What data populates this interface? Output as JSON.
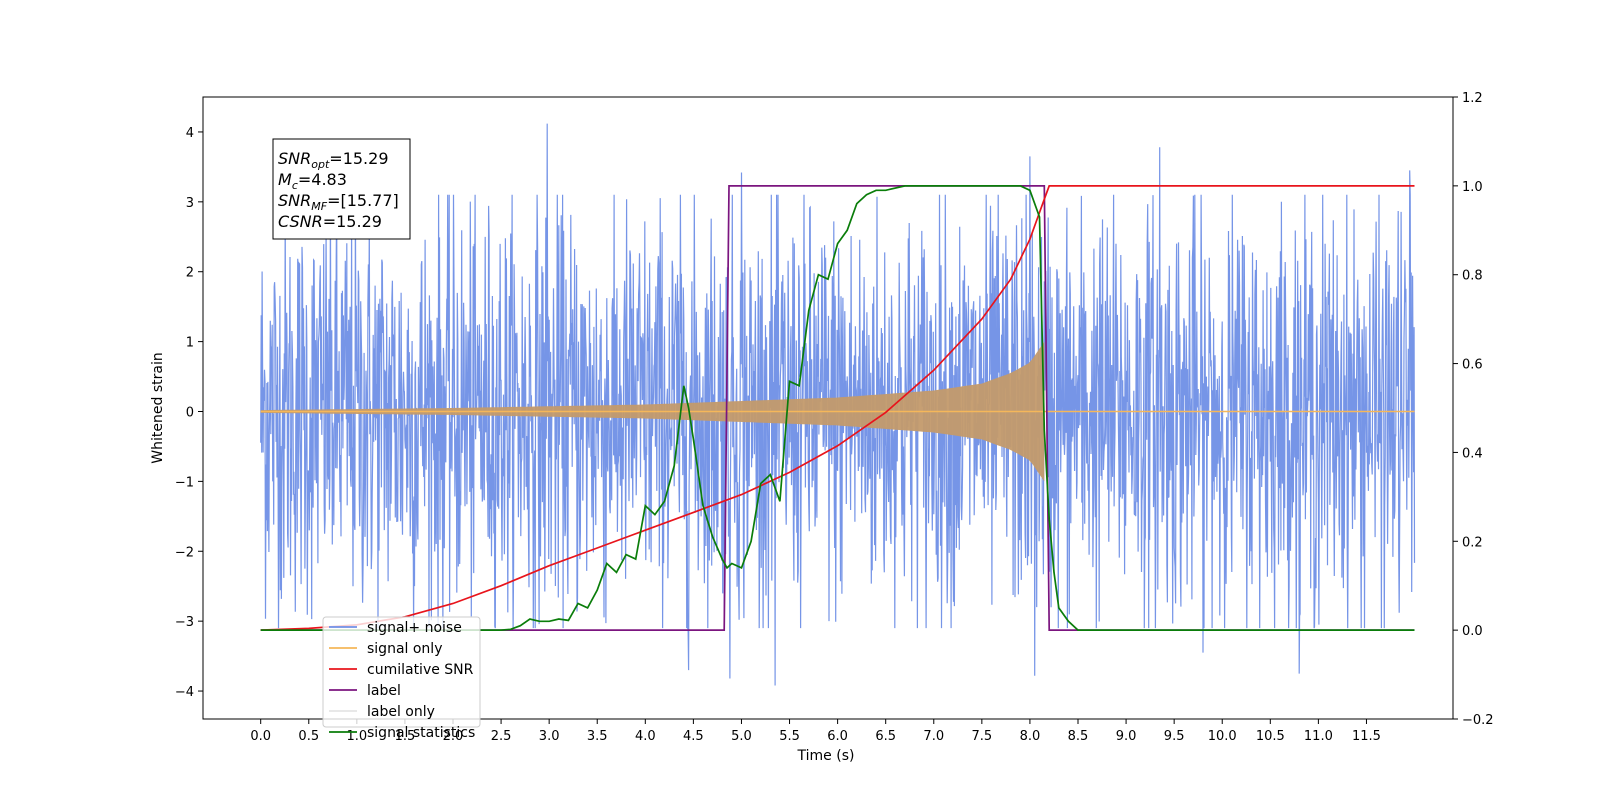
{
  "chart_data": {
    "type": "line",
    "xlabel": "Time (s)",
    "ylabel": "Whitened strain",
    "xlim": [
      -0.6,
      12.4
    ],
    "ylim": [
      -4.4,
      4.5
    ],
    "y2lim": [
      -0.2,
      1.2
    ],
    "x_ticks": [
      "0.0",
      "0.5",
      "1.0",
      "1.5",
      "2.0",
      "2.5",
      "3.0",
      "3.5",
      "4.0",
      "4.5",
      "5.0",
      "5.5",
      "6.0",
      "6.5",
      "7.0",
      "7.5",
      "8.0",
      "8.5",
      "9.0",
      "9.5",
      "10.0",
      "10.5",
      "11.0",
      "11.5"
    ],
    "y_ticks": [
      "4",
      "3",
      "2",
      "1",
      "0",
      "−1",
      "−2",
      "−3",
      "−4"
    ],
    "y2_ticks": [
      "1.2",
      "1.0",
      "0.8",
      "0.6",
      "0.4",
      "0.2",
      "0.0",
      "−0.2"
    ],
    "legend_position": "lower-left",
    "textbox": {
      "lines": [
        {
          "name": "SNR",
          "sub": "opt",
          "value": "=15.29"
        },
        {
          "name": "M",
          "sub": "c",
          "value": "=4.83"
        },
        {
          "name": "SNR",
          "sub": "MF",
          "value": "=[15.77]"
        },
        {
          "name": "CSNR",
          "sub": "",
          "value": "=15.29"
        }
      ]
    },
    "series": [
      {
        "name": "signal+ noise",
        "axis": "left",
        "color": "#6f8fe6",
        "description_shape": "noise envelope",
        "t_range": [
          0.0,
          12.0
        ],
        "typical_abs": 1.6,
        "spikes": [
          [
            2.98,
            4.12
          ],
          [
            8.0,
            3.65
          ],
          [
            9.35,
            3.78
          ],
          [
            11.95,
            3.45
          ],
          [
            5.0,
            3.42
          ],
          [
            5.35,
            -3.92
          ],
          [
            4.88,
            -3.82
          ],
          [
            8.05,
            -3.78
          ],
          [
            4.45,
            -3.7
          ],
          [
            10.8,
            -3.75
          ],
          [
            9.8,
            -3.45
          ]
        ]
      },
      {
        "name": "signal only",
        "axis": "left",
        "color": "#f5b75a",
        "description_shape": "chirp envelope",
        "t_start": 0.0,
        "t_merge": 8.15,
        "t_end": 12.0,
        "amplitude": [
          [
            0.0,
            0.02
          ],
          [
            2.0,
            0.05
          ],
          [
            4.0,
            0.1
          ],
          [
            5.0,
            0.15
          ],
          [
            6.0,
            0.2
          ],
          [
            7.0,
            0.3
          ],
          [
            7.5,
            0.4
          ],
          [
            7.8,
            0.55
          ],
          [
            8.0,
            0.7
          ],
          [
            8.15,
            1.0
          ]
        ]
      },
      {
        "name": "cumilative SNR",
        "axis": "right",
        "color": "#e8141c",
        "x": [
          0.0,
          0.5,
          1.0,
          1.5,
          2.0,
          2.5,
          3.0,
          3.5,
          4.0,
          4.5,
          5.0,
          5.5,
          6.0,
          6.5,
          7.0,
          7.5,
          7.8,
          8.0,
          8.1,
          8.15,
          8.2,
          12.0
        ],
        "y": [
          0.0,
          0.004,
          0.012,
          0.03,
          0.06,
          0.1,
          0.145,
          0.185,
          0.225,
          0.265,
          0.305,
          0.355,
          0.415,
          0.49,
          0.585,
          0.7,
          0.79,
          0.88,
          0.94,
          0.97,
          1.0,
          1.0
        ]
      },
      {
        "name": "label",
        "axis": "right",
        "color": "#7b157f",
        "x": [
          0.0,
          4.82,
          4.87,
          8.15,
          8.2,
          12.0
        ],
        "y": [
          0.0,
          0.0,
          1.0,
          1.0,
          0.0,
          0.0
        ]
      },
      {
        "name": "label only",
        "axis": "right",
        "color": "#e5e5e5",
        "x": [],
        "y": []
      },
      {
        "name": "signal statistics",
        "axis": "right",
        "color": "#0a7d0a",
        "x": [
          0.0,
          2.5,
          2.6,
          2.7,
          2.8,
          2.9,
          3.0,
          3.1,
          3.2,
          3.3,
          3.4,
          3.5,
          3.6,
          3.7,
          3.8,
          3.9,
          4.0,
          4.1,
          4.2,
          4.3,
          4.4,
          4.45,
          4.5,
          4.6,
          4.7,
          4.8,
          4.85,
          4.9,
          5.0,
          5.1,
          5.2,
          5.3,
          5.4,
          5.5,
          5.6,
          5.7,
          5.8,
          5.9,
          6.0,
          6.1,
          6.2,
          6.3,
          6.4,
          6.5,
          6.7,
          7.0,
          7.5,
          7.9,
          8.0,
          8.1,
          8.15,
          8.2,
          8.25,
          8.3,
          8.4,
          8.5,
          12.0
        ],
        "y": [
          0.0,
          0.0,
          0.002,
          0.01,
          0.025,
          0.02,
          0.02,
          0.025,
          0.022,
          0.06,
          0.05,
          0.09,
          0.15,
          0.13,
          0.17,
          0.16,
          0.28,
          0.26,
          0.29,
          0.37,
          0.55,
          0.5,
          0.43,
          0.28,
          0.21,
          0.16,
          0.14,
          0.15,
          0.14,
          0.2,
          0.33,
          0.35,
          0.29,
          0.56,
          0.55,
          0.72,
          0.8,
          0.79,
          0.87,
          0.9,
          0.96,
          0.98,
          0.99,
          0.99,
          1.0,
          1.0,
          1.0,
          1.0,
          0.99,
          0.93,
          0.45,
          0.25,
          0.13,
          0.05,
          0.02,
          0.0,
          0.0
        ]
      }
    ]
  }
}
